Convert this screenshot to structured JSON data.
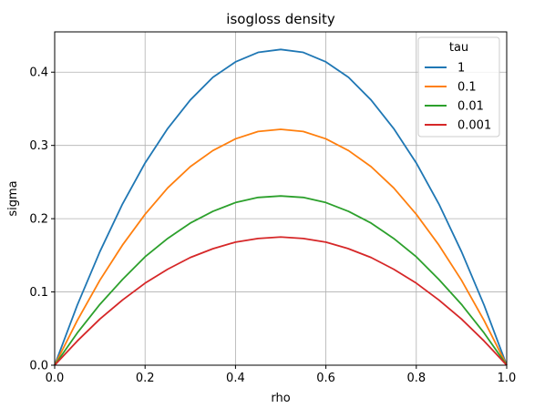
{
  "chart_data": {
    "type": "line",
    "title": "isogloss density",
    "xlabel": "rho",
    "ylabel": "sigma",
    "xlim": [
      0.0,
      1.0
    ],
    "ylim": [
      0.0,
      0.455
    ],
    "x_ticks": [
      0.0,
      0.2,
      0.4,
      0.6,
      0.8,
      1.0
    ],
    "y_ticks": [
      0.0,
      0.1,
      0.2,
      0.3,
      0.4
    ],
    "x_tick_labels": [
      "0.0",
      "0.2",
      "0.4",
      "0.6",
      "0.8",
      "1.0"
    ],
    "y_tick_labels": [
      "0.0",
      "0.1",
      "0.2",
      "0.3",
      "0.4"
    ],
    "grid": true,
    "legend": {
      "title": "tau",
      "placement": "top-right"
    },
    "x": [
      0.0,
      0.05,
      0.1,
      0.15,
      0.2,
      0.25,
      0.3,
      0.35,
      0.4,
      0.45,
      0.5,
      0.55,
      0.6,
      0.65,
      0.7,
      0.75,
      0.8,
      0.85,
      0.9,
      0.95,
      1.0
    ],
    "series": [
      {
        "name": "1",
        "color": "#1f77b4",
        "values": [
          0.0,
          0.082,
          0.155,
          0.22,
          0.276,
          0.323,
          0.362,
          0.393,
          0.414,
          0.427,
          0.431,
          0.427,
          0.414,
          0.393,
          0.362,
          0.323,
          0.276,
          0.22,
          0.155,
          0.082,
          0.0
        ]
      },
      {
        "name": "0.1",
        "color": "#ff7f0e",
        "values": [
          0.0,
          0.061,
          0.116,
          0.164,
          0.206,
          0.242,
          0.271,
          0.293,
          0.309,
          0.319,
          0.322,
          0.319,
          0.309,
          0.293,
          0.271,
          0.242,
          0.206,
          0.164,
          0.116,
          0.061,
          0.0
        ]
      },
      {
        "name": "0.01",
        "color": "#2ca02c",
        "values": [
          0.0,
          0.044,
          0.083,
          0.117,
          0.148,
          0.173,
          0.194,
          0.21,
          0.222,
          0.229,
          0.231,
          0.229,
          0.222,
          0.21,
          0.194,
          0.173,
          0.148,
          0.117,
          0.083,
          0.044,
          0.0
        ]
      },
      {
        "name": "0.001",
        "color": "#d62728",
        "values": [
          0.0,
          0.033,
          0.063,
          0.089,
          0.112,
          0.131,
          0.147,
          0.159,
          0.168,
          0.173,
          0.175,
          0.173,
          0.168,
          0.159,
          0.147,
          0.131,
          0.112,
          0.089,
          0.063,
          0.033,
          0.0
        ]
      }
    ]
  }
}
